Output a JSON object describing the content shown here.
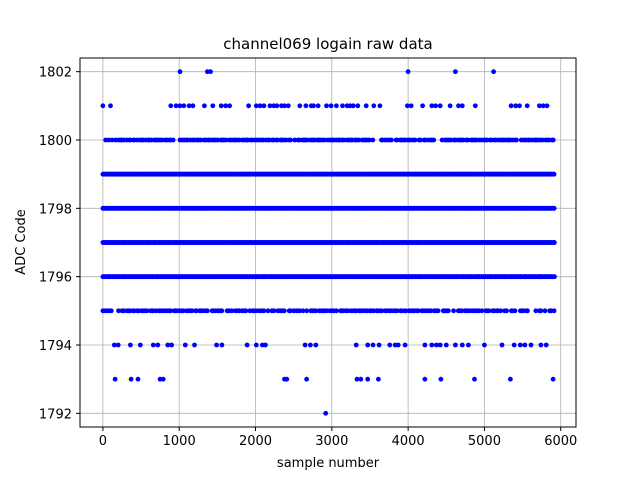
{
  "chart_data": {
    "type": "scatter",
    "title": "channel069 logain raw data",
    "xlabel": "sample number",
    "ylabel": "ADC Code",
    "xlim": [
      -300,
      6200
    ],
    "ylim": [
      1791.6,
      1802.4
    ],
    "xticks": [
      0,
      1000,
      2000,
      3000,
      4000,
      5000,
      6000
    ],
    "yticks": [
      1792,
      1794,
      1796,
      1798,
      1800,
      1802
    ],
    "grid": true,
    "marker_color": "#0000ff",
    "x_range": [
      0,
      5920
    ],
    "dense_levels": [
      1795,
      1796,
      1797,
      1798,
      1799,
      1800
    ],
    "sparse_points": {
      "1802": [
        1010,
        1370,
        1410,
        4000,
        4620,
        5120
      ],
      "1801": [
        0,
        100,
        890,
        960,
        1010,
        1060,
        1130,
        1180,
        1330,
        1440,
        1550,
        1610,
        1660,
        1910,
        2010,
        2060,
        2110,
        2190,
        2240,
        2280,
        2340,
        2380,
        2430,
        2580,
        2660,
        2730,
        2760,
        2820,
        2930,
        2990,
        3060,
        3140,
        3200,
        3240,
        3280,
        3340,
        3450,
        3550,
        3630,
        3990,
        4040,
        4190,
        4310,
        4360,
        4420,
        4550,
        4660,
        4710,
        4880,
        5350,
        5410,
        5460,
        5560,
        5720,
        5770,
        5820
      ],
      "1794": [
        150,
        200,
        360,
        490,
        660,
        720,
        850,
        900,
        1080,
        1200,
        1490,
        1560,
        1890,
        2010,
        2090,
        2130,
        2650,
        2720,
        2790,
        3320,
        3470,
        3540,
        3620,
        3760,
        3830,
        3870,
        3960,
        4220,
        4310,
        4370,
        4420,
        4500,
        4620,
        4710,
        4790,
        5000,
        5230,
        5390,
        5470,
        5530,
        5610,
        5740,
        5810
      ],
      "1793": [
        160,
        370,
        460,
        750,
        790,
        2380,
        2410,
        2670,
        3330,
        3380,
        3470,
        3610,
        4220,
        4430,
        4870,
        5340,
        5900
      ],
      "1792": [
        2920
      ]
    }
  }
}
